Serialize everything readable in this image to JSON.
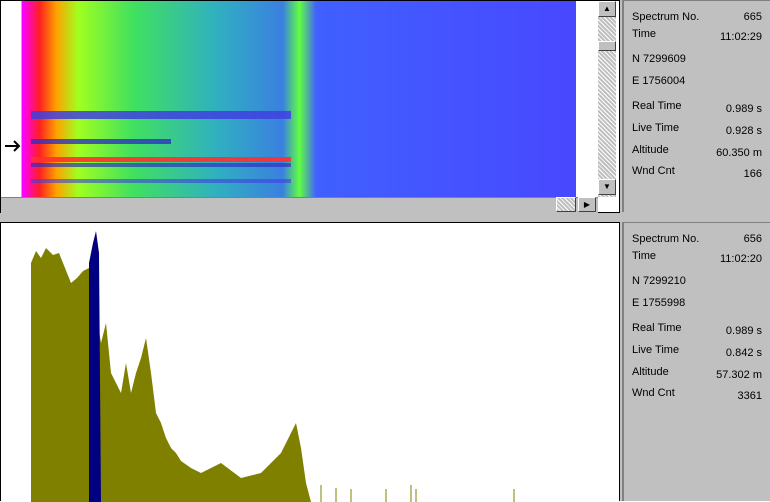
{
  "panels": [
    {
      "rows": [
        [
          "Spectrum No.",
          "665"
        ],
        [
          "Time",
          "11:02:29"
        ]
      ],
      "position": [
        "N 7299609",
        "E 1756004"
      ],
      "stats": [
        [
          "Real Time",
          "0.989 s"
        ],
        [
          "Live Time",
          "0.928 s"
        ],
        [
          "Altitude",
          "60.350 m"
        ],
        [
          "Wnd Cnt",
          "166"
        ]
      ]
    },
    {
      "rows": [
        [
          "Spectrum No.",
          "656"
        ],
        [
          "Time",
          "11:02:20"
        ]
      ],
      "position": [
        "N 7299210",
        "E 1755998"
      ],
      "stats": [
        [
          "Real Time",
          "0.989 s"
        ],
        [
          "Live Time",
          "0.842 s"
        ],
        [
          "Altitude",
          "57.302 m"
        ],
        [
          "Wnd Cnt",
          "3361"
        ]
      ]
    }
  ]
}
